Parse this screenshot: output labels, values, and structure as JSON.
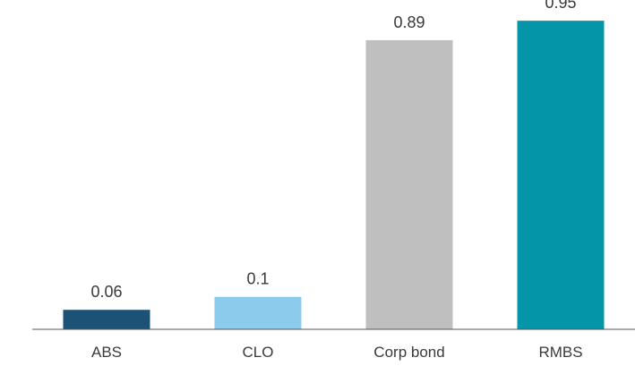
{
  "chart_data": {
    "type": "bar",
    "title": "",
    "xlabel": "",
    "ylabel": "",
    "categories": [
      "ABS",
      "CLO",
      "Corp bond",
      "RMBS"
    ],
    "values": [
      0.06,
      0.1,
      0.89,
      0.95
    ],
    "value_labels": [
      "0.06",
      "0.1",
      "0.89",
      "0.95"
    ],
    "colors": [
      "#1b5276",
      "#8ccbec",
      "#bfbfbf",
      "#0496a8"
    ],
    "ylim": [
      0,
      1.0
    ],
    "grid": false,
    "legend": "none"
  }
}
